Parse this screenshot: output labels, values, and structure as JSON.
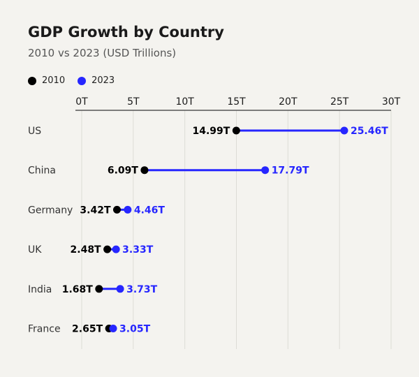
{
  "chart_data": {
    "type": "dumbbell",
    "title": "GDP Growth by Country",
    "subtitle": "2010 vs 2023 (USD Trillions)",
    "legend": [
      {
        "name": "2010",
        "color": "#000000"
      },
      {
        "name": "2023",
        "color": "#2626ff"
      }
    ],
    "legend_position": "top-left",
    "x_axis": {
      "position": "top",
      "range": [
        0,
        30
      ],
      "ticks": [
        0,
        5,
        10,
        15,
        20,
        25,
        30
      ],
      "tick_labels": [
        "0T",
        "5T",
        "10T",
        "15T",
        "20T",
        "25T",
        "30T"
      ]
    },
    "grid": true,
    "categories": [
      "US",
      "China",
      "Germany",
      "UK",
      "India",
      "France"
    ],
    "series": [
      {
        "name": "2010",
        "color": "#000000",
        "values": [
          14.99,
          6.09,
          3.42,
          2.48,
          1.68,
          2.65
        ],
        "labels": [
          "14.99T",
          "6.09T",
          "3.42T",
          "2.48T",
          "1.68T",
          "2.65T"
        ]
      },
      {
        "name": "2023",
        "color": "#2626ff",
        "values": [
          25.46,
          17.79,
          4.46,
          3.33,
          3.73,
          3.05
        ],
        "labels": [
          "25.46T",
          "17.79T",
          "4.46T",
          "3.33T",
          "3.73T",
          "3.05T"
        ]
      }
    ],
    "connector_color": "#2626ff"
  }
}
